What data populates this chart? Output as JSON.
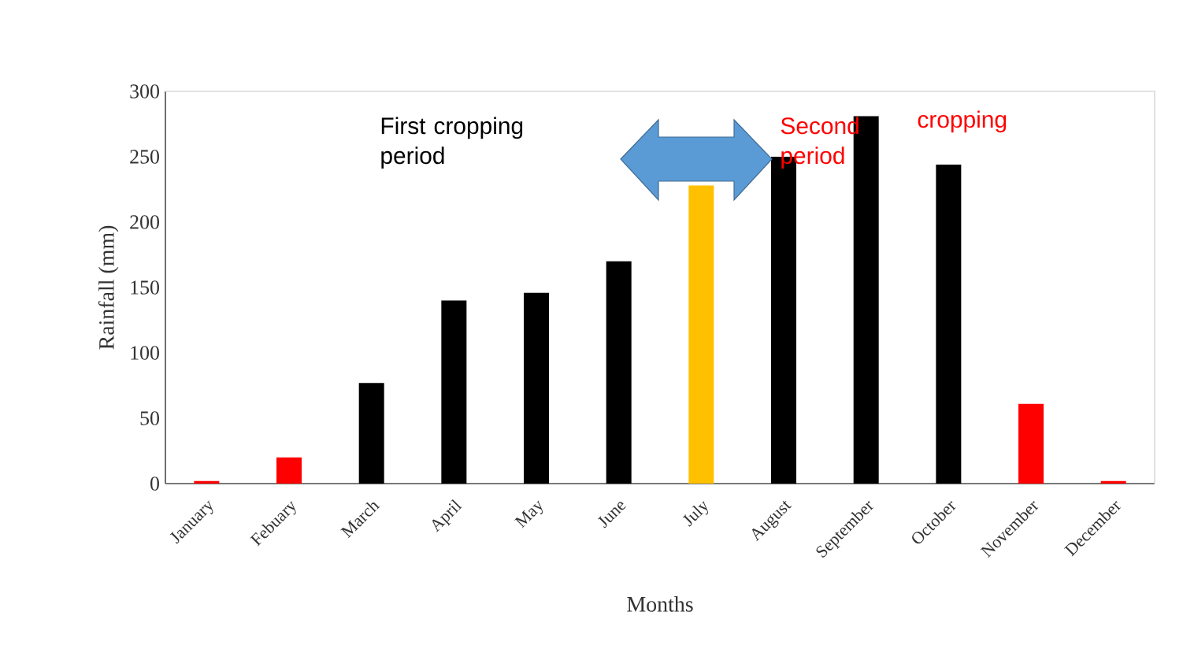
{
  "chart_data": {
    "type": "bar",
    "xlabel": "Months",
    "ylabel": "Rainfall (mm)",
    "categories": [
      "January",
      "Febuary",
      "March",
      "April",
      "May",
      "June",
      "July",
      "August",
      "September",
      "October",
      "November",
      "December"
    ],
    "values": [
      2,
      20,
      77,
      140,
      146,
      170,
      228,
      250,
      281,
      244,
      61,
      2
    ],
    "colors": [
      "#ff0000",
      "#ff0000",
      "#000000",
      "#000000",
      "#000000",
      "#000000",
      "#ffc000",
      "#000000",
      "#000000",
      "#000000",
      "#ff0000",
      "#ff0000"
    ],
    "ylim": [
      0,
      300
    ],
    "yticks": [
      0,
      50,
      100,
      150,
      200,
      250,
      300
    ],
    "grid": false,
    "annotations": [
      "First cropping period",
      "Second period",
      "cropping"
    ]
  }
}
